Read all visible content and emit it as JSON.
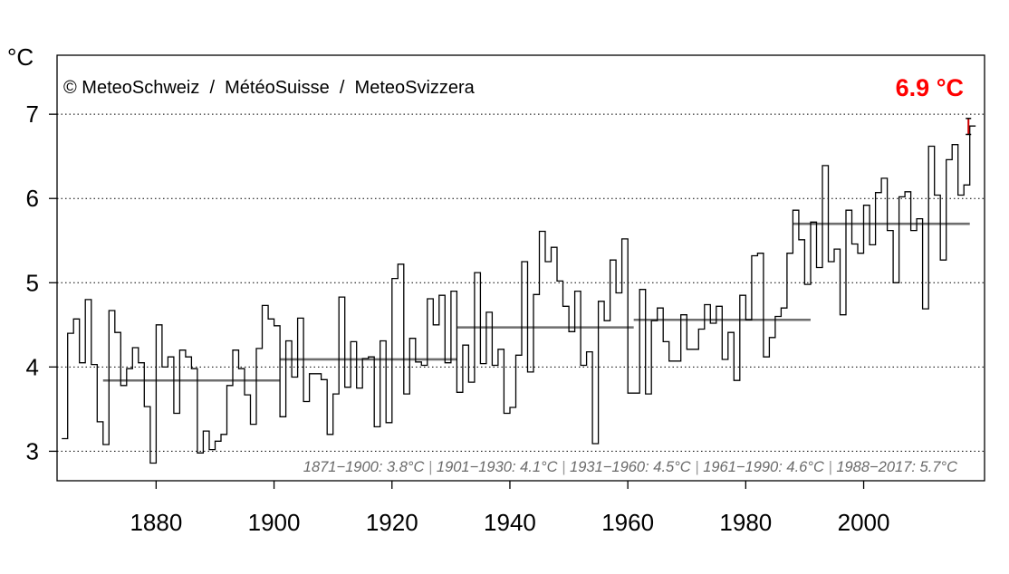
{
  "chart_data": {
    "type": "line",
    "y_unit": "°C",
    "copyright": "© MeteoSchweiz  /  MétéoSuisse  /  MeteoSvizzera",
    "highlight": {
      "text": "6.9 °C",
      "color": "#ff0000",
      "year": 2018,
      "value": 6.86,
      "range": [
        6.76,
        6.95
      ]
    },
    "ylim": [
      2.65,
      7.7
    ],
    "xlim": [
      1863.2,
      2020.5
    ],
    "yticks": [
      3,
      4,
      5,
      6,
      7
    ],
    "xticks": [
      1880,
      1900,
      1920,
      1940,
      1960,
      1980,
      2000
    ],
    "grid": true,
    "line_color": "#000000",
    "normal_color": "#6e6e6e",
    "series": [
      {
        "start_year": 1864,
        "values": [
          3.15,
          4.4,
          4.57,
          4.05,
          4.8,
          4.03,
          3.35,
          3.08,
          4.67,
          4.41,
          3.78,
          3.98,
          4.23,
          4.05,
          3.53,
          2.86,
          4.5,
          4.0,
          4.12,
          3.45,
          4.2,
          4.12,
          3.98,
          2.98,
          3.24,
          3.02,
          3.12,
          3.2,
          3.78,
          4.2,
          3.98,
          3.67,
          3.32,
          4.22,
          4.73,
          4.57,
          4.49,
          3.41,
          4.31,
          3.88,
          4.58,
          3.59,
          3.92,
          3.92,
          3.85,
          3.2,
          3.68,
          4.83,
          3.76,
          4.3,
          3.75,
          4.1,
          4.12,
          3.29,
          4.31,
          3.34,
          5.05,
          5.22,
          3.68,
          4.34,
          4.06,
          4.02,
          4.81,
          4.5,
          4.85,
          4.05,
          4.9,
          3.7,
          4.26,
          3.82,
          5.12,
          4.04,
          4.65,
          4.02,
          4.21,
          3.45,
          3.52,
          4.14,
          5.25,
          3.94,
          4.86,
          5.61,
          5.25,
          5.42,
          5.02,
          4.72,
          4.42,
          4.9,
          4.02,
          4.18,
          3.09,
          4.78,
          4.55,
          5.27,
          4.88,
          5.52,
          3.69,
          3.69,
          4.92,
          3.68,
          4.55,
          4.7,
          4.3,
          4.07,
          4.07,
          4.62,
          4.21,
          4.21,
          4.45,
          4.74,
          4.52,
          4.72,
          4.09,
          4.41,
          3.84,
          4.85,
          4.56,
          5.32,
          5.35,
          4.12,
          4.35,
          4.6,
          4.7,
          5.35,
          5.86,
          5.51,
          4.98,
          5.72,
          5.18,
          6.39,
          5.25,
          5.4,
          4.62,
          5.86,
          5.46,
          5.35,
          5.92,
          5.45,
          6.07,
          6.24,
          5.62,
          5.0,
          6.02,
          6.08,
          5.62,
          5.76,
          4.69,
          6.62,
          6.04,
          5.27,
          6.46,
          6.64,
          6.04,
          6.16,
          6.86
        ]
      }
    ],
    "normals": [
      {
        "start": 1871,
        "end": 1900,
        "value": 3.84
      },
      {
        "start": 1901,
        "end": 1930,
        "value": 4.09
      },
      {
        "start": 1931,
        "end": 1960,
        "value": 4.47
      },
      {
        "start": 1961,
        "end": 1990,
        "value": 4.56
      },
      {
        "start": 1988,
        "end": 2017,
        "value": 5.7
      }
    ],
    "footnote": [
      "1871−1900: 3.8°C",
      "1901−1930: 4.1°C",
      "1931−1960: 4.5°C",
      "1961−1990: 4.6°C",
      "1988−2017: 5.7°C"
    ]
  }
}
